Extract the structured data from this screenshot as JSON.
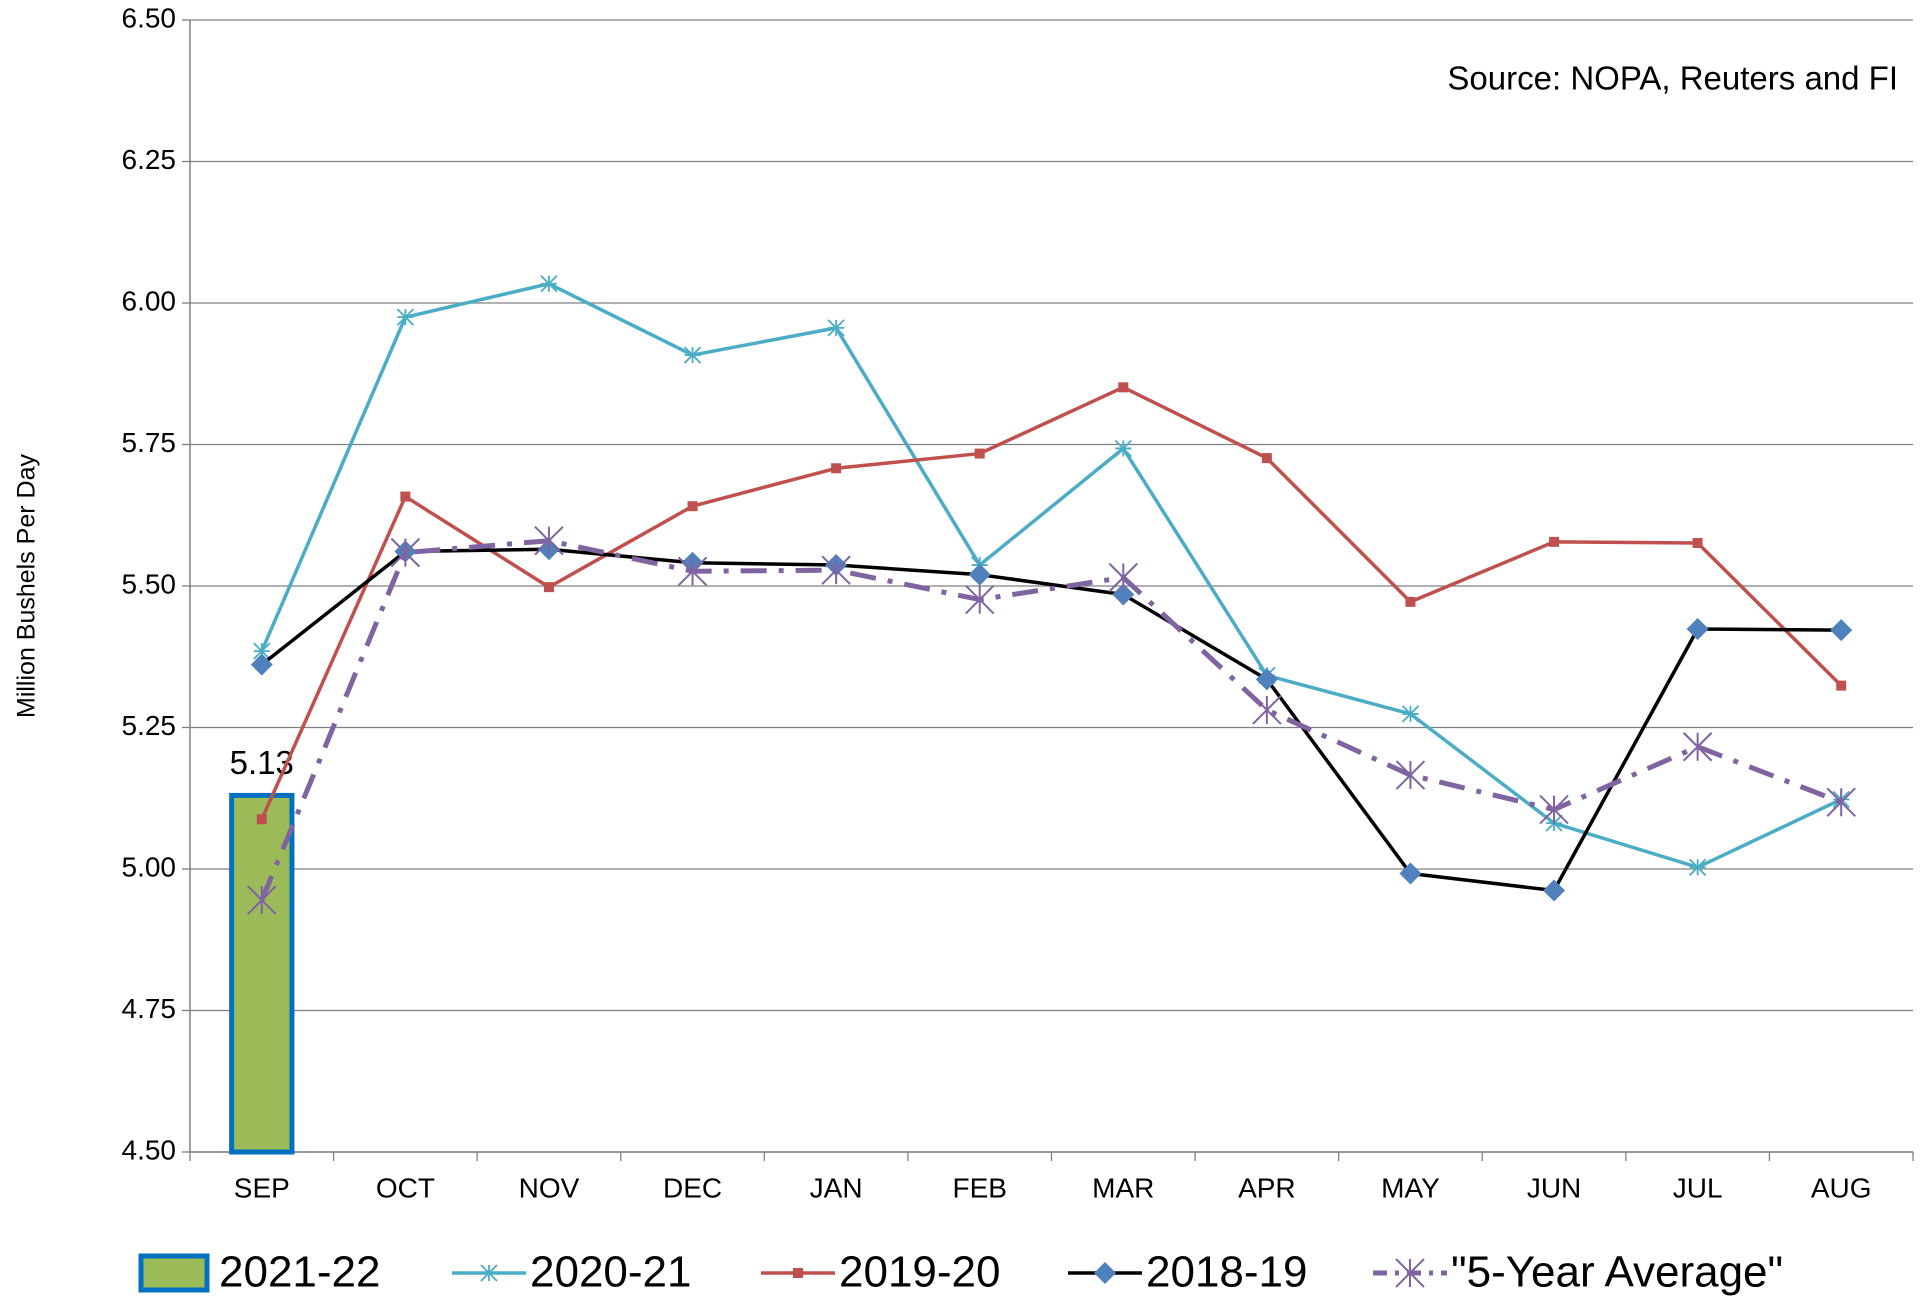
{
  "chart_data": {
    "type": "line",
    "annotation": "Source: NOPA, Reuters and FI",
    "y_label": "Million Bushels Per Day",
    "categories": [
      "SEP",
      "OCT",
      "NOV",
      "DEC",
      "JAN",
      "FEB",
      "MAR",
      "APR",
      "MAY",
      "JUN",
      "JUL",
      "AUG"
    ],
    "series": [
      {
        "name": "2021-22",
        "type": "bar",
        "color": "#9bbb59",
        "edge_color": "#0070c0",
        "values": [
          5.13,
          null,
          null,
          null,
          null,
          null,
          null,
          null,
          null,
          null,
          null,
          null
        ],
        "value_labels": [
          "5.13",
          null,
          null,
          null,
          null,
          null,
          null,
          null,
          null,
          null,
          null,
          null
        ]
      },
      {
        "name": "2020-21",
        "type": "line",
        "color": "#4bacc6",
        "marker": "asterisk",
        "values": [
          5.385,
          5.975,
          6.034,
          5.908,
          5.956,
          5.537,
          5.743,
          5.342,
          5.274,
          5.081,
          5.003,
          5.123
        ]
      },
      {
        "name": "2019-20",
        "type": "line",
        "color": "#c0504d",
        "marker": "square",
        "values": [
          5.088,
          5.658,
          5.498,
          5.641,
          5.708,
          5.734,
          5.851,
          5.726,
          5.472,
          5.578,
          5.576,
          5.324
        ]
      },
      {
        "name": "2018-19",
        "type": "line",
        "color": "#000000",
        "marker": "diamond",
        "marker_color": "#4f81bd",
        "values": [
          5.361,
          5.561,
          5.565,
          5.541,
          5.537,
          5.52,
          5.485,
          5.335,
          4.992,
          4.962,
          5.424,
          5.422
        ]
      },
      {
        "name": "\"5-Year Average\"",
        "type": "line",
        "color": "#8064a2",
        "marker": "star",
        "dash": "dashdot",
        "values": [
          4.945,
          5.559,
          5.58,
          5.526,
          5.528,
          5.476,
          5.515,
          5.281,
          5.166,
          5.105,
          5.216,
          5.118
        ]
      }
    ],
    "ylim": [
      4.5,
      6.5
    ],
    "yticks": [
      {
        "value": 4.5,
        "label": "4.50"
      },
      {
        "value": 4.75,
        "label": "4.75"
      },
      {
        "value": 5,
        "label": "5.00"
      },
      {
        "value": 5.25,
        "label": "5.25"
      },
      {
        "value": 5.5,
        "label": "5.50"
      },
      {
        "value": 5.75,
        "label": "5.75"
      },
      {
        "value": 6,
        "label": "6.00"
      },
      {
        "value": 6.25,
        "label": "6.25"
      },
      {
        "value": 6.5,
        "label": "6.50"
      }
    ],
    "grid": true,
    "legend": "bottom"
  }
}
